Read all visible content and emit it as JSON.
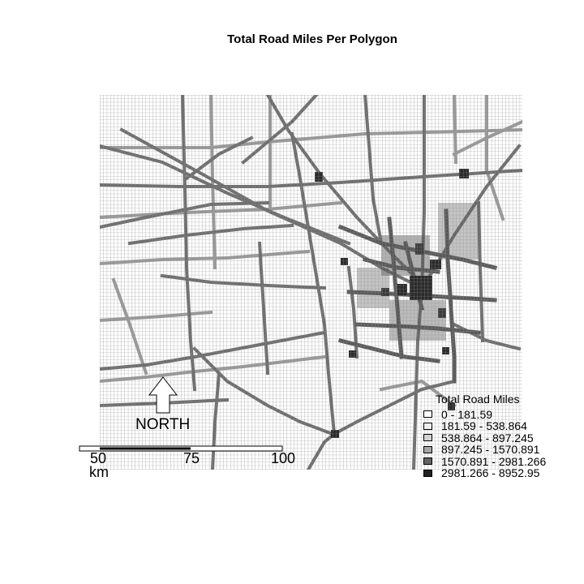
{
  "title": "Total Road Miles Per Polygon",
  "north_arrow": {
    "label": "NORTH"
  },
  "scale_bar": {
    "ticks": [
      "50",
      "75",
      "100"
    ],
    "unit": "km"
  },
  "legend": {
    "title": "Total Road Miles",
    "items": [
      {
        "label": "0 - 181.59",
        "color": "#ffffff"
      },
      {
        "label": "181.59 - 538.864",
        "color": "#eeeeee"
      },
      {
        "label": "538.864 - 897.245",
        "color": "#d3d3d3"
      },
      {
        "label": "897.245 - 1570.891",
        "color": "#a6a6a6"
      },
      {
        "label": "1570.891 - 2981.266",
        "color": "#636363"
      },
      {
        "label": "2981.266 - 8952.95",
        "color": "#222222"
      }
    ]
  }
}
